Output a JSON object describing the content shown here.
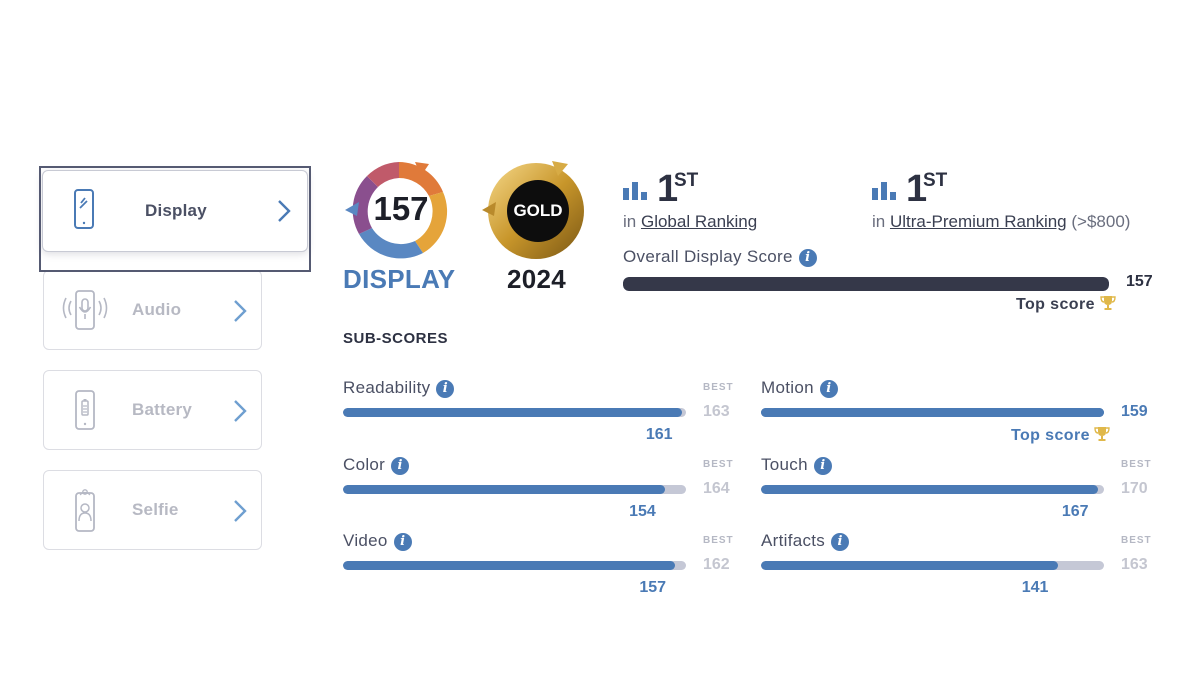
{
  "sidebar": {
    "items": [
      {
        "label": "Display",
        "icon": "phone-display-icon",
        "active": true
      },
      {
        "label": "Audio",
        "icon": "phone-audio-icon",
        "active": false
      },
      {
        "label": "Battery",
        "icon": "phone-battery-icon",
        "active": false
      },
      {
        "label": "Selfie",
        "icon": "phone-selfie-icon",
        "active": false
      }
    ]
  },
  "badges": {
    "score": {
      "value": "157",
      "label": "DISPLAY"
    },
    "award": {
      "value": "GOLD",
      "label": "2024"
    }
  },
  "rankings": [
    {
      "rank": "1",
      "suffix": "ST",
      "prefix": "in",
      "link": "Global Ranking",
      "extra": ""
    },
    {
      "rank": "1",
      "suffix": "ST",
      "prefix": "in",
      "link": "Ultra-Premium Ranking",
      "extra": "(>$800)"
    }
  ],
  "overall": {
    "title": "Overall Display Score",
    "score": "157",
    "fill": 1.0,
    "top_score_label": "Top score"
  },
  "subscores": {
    "title": "SUB-SCORES",
    "best_label": "BEST",
    "items": [
      {
        "name": "Readability",
        "score": "161",
        "best": "163",
        "fill": 0.988
      },
      {
        "name": "Motion",
        "score": "159",
        "best": "",
        "fill": 1.0,
        "top_score_label": "Top score"
      },
      {
        "name": "Color",
        "score": "154",
        "best": "164",
        "fill": 0.939
      },
      {
        "name": "Touch",
        "score": "167",
        "best": "170",
        "fill": 0.982
      },
      {
        "name": "Video",
        "score": "157",
        "best": "162",
        "fill": 0.969
      },
      {
        "name": "Artifacts",
        "score": "141",
        "best": "163",
        "fill": 0.865
      }
    ]
  },
  "colors": {
    "accent_blue": "#4a7ab5",
    "dark_bar": "#353849",
    "bar_bg": "#c5c8d6",
    "gold": "#d9a429"
  }
}
